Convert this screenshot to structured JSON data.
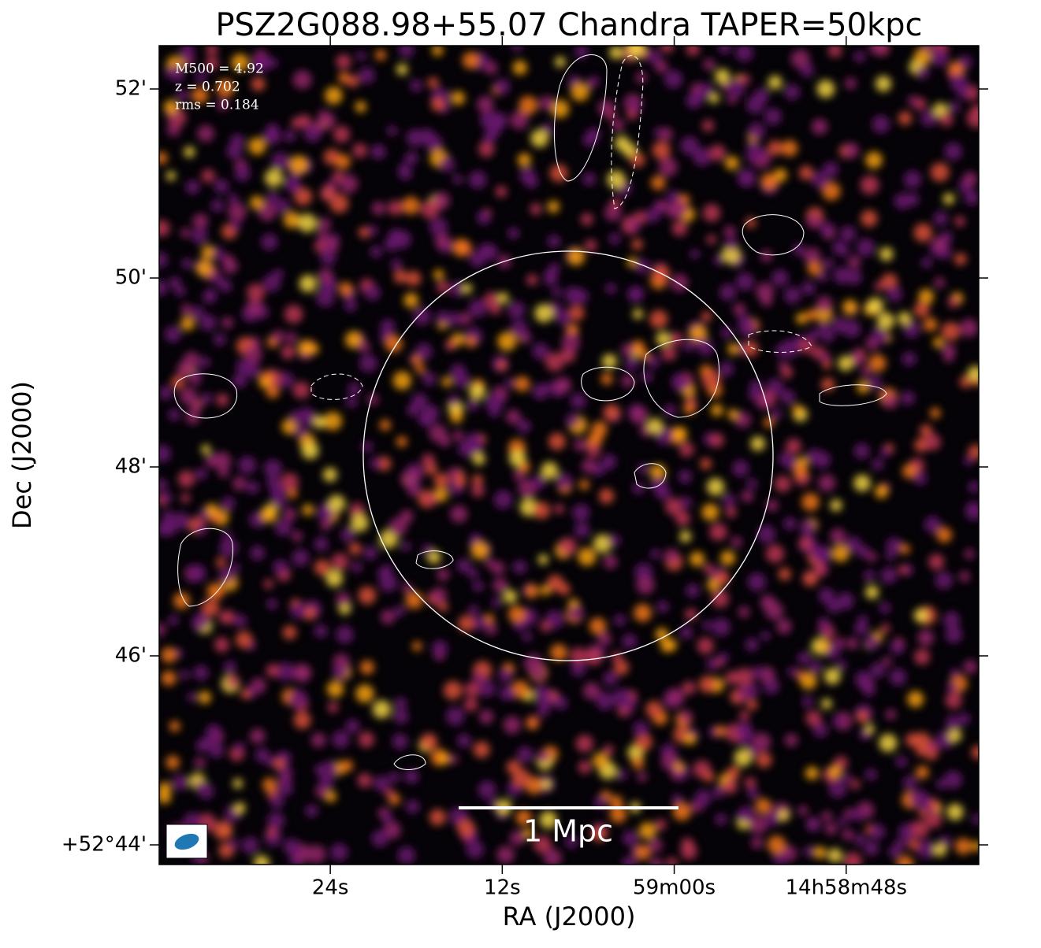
{
  "chart_data": {
    "type": "image",
    "title": "PSZ2G088.98+55.07 Chandra TAPER=50kpc",
    "xlabel": "RA (J2000)",
    "ylabel": "Dec (J2000)",
    "annotations": [
      "M500 = 4.92",
      "z = 0.702",
      "rms = 0.184"
    ],
    "scalebar_label": "1 Mpc",
    "xlim": [
      224.89975,
      224.66146
    ],
    "xticks": [
      {
        "value": 224.85,
        "label": "24s"
      },
      {
        "value": 224.8,
        "label": "12s"
      },
      {
        "value": 224.75,
        "label": "59m00s"
      },
      {
        "value": 224.7,
        "label": "14h58m48s"
      }
    ],
    "ylim": [
      52.72986,
      52.87431
    ],
    "yticks": [
      {
        "value": 52.73333,
        "label": "+52°44'"
      },
      {
        "value": 52.76667,
        "label": "46'"
      },
      {
        "value": 52.8,
        "label": "48'"
      },
      {
        "value": 52.83333,
        "label": "50'"
      },
      {
        "value": 52.86667,
        "label": "52'"
      }
    ],
    "colormap": "inferno"
  }
}
